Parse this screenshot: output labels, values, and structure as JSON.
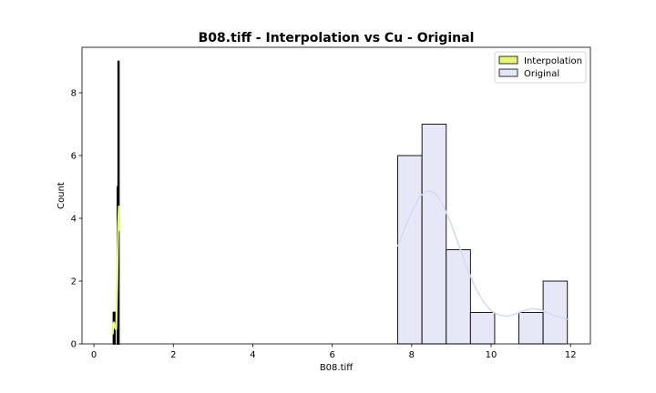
{
  "chart_data": {
    "type": "bar",
    "title": "B08.tiff - Interpolation vs Cu - Original",
    "xlabel": "B08.tiff",
    "ylabel": "Count",
    "xlim": [
      -0.3,
      12.5
    ],
    "ylim": [
      0,
      9.45
    ],
    "xticks": [
      0,
      2,
      4,
      6,
      8,
      10,
      12
    ],
    "yticks": [
      0,
      2,
      4,
      6,
      8
    ],
    "legend_position": "top-right",
    "series": [
      {
        "name": "Interpolation",
        "color": "#e5f57e",
        "edge_color": "#000000",
        "bins": [
          {
            "x0": 0.49,
            "x1": 0.51,
            "count": 1
          },
          {
            "x0": 0.51,
            "x1": 0.53,
            "count": 1
          },
          {
            "x0": 0.53,
            "x1": 0.55,
            "count": 0
          },
          {
            "x0": 0.55,
            "x1": 0.57,
            "count": 0
          },
          {
            "x0": 0.57,
            "x1": 0.59,
            "count": 0
          },
          {
            "x0": 0.59,
            "x1": 0.61,
            "count": 5
          },
          {
            "x0": 0.61,
            "x1": 0.63,
            "count": 9
          }
        ],
        "kde": [
          [
            0.47,
            0.3
          ],
          [
            0.5,
            0.7
          ],
          [
            0.53,
            0.55
          ],
          [
            0.56,
            0.45
          ],
          [
            0.59,
            2.2
          ],
          [
            0.61,
            3.8
          ],
          [
            0.63,
            4.4
          ],
          [
            0.65,
            3.6
          ]
        ]
      },
      {
        "name": "Original",
        "color": "#e6e8f8",
        "edge_color": "#000000",
        "bins": [
          {
            "x0": 7.65,
            "x1": 8.26,
            "count": 6
          },
          {
            "x0": 8.26,
            "x1": 8.87,
            "count": 7
          },
          {
            "x0": 8.87,
            "x1": 9.48,
            "count": 3
          },
          {
            "x0": 9.48,
            "x1": 10.09,
            "count": 1
          },
          {
            "x0": 10.09,
            "x1": 10.7,
            "count": 0
          },
          {
            "x0": 10.7,
            "x1": 11.31,
            "count": 1
          },
          {
            "x0": 11.31,
            "x1": 11.92,
            "count": 2
          }
        ],
        "kde": [
          [
            7.65,
            3.1
          ],
          [
            7.8,
            3.6
          ],
          [
            8.0,
            4.2
          ],
          [
            8.2,
            4.7
          ],
          [
            8.4,
            4.88
          ],
          [
            8.6,
            4.8
          ],
          [
            8.8,
            4.4
          ],
          [
            9.0,
            3.8
          ],
          [
            9.2,
            3.1
          ],
          [
            9.4,
            2.4
          ],
          [
            9.6,
            1.8
          ],
          [
            9.8,
            1.35
          ],
          [
            10.0,
            1.05
          ],
          [
            10.2,
            0.92
          ],
          [
            10.4,
            0.88
          ],
          [
            10.6,
            0.95
          ],
          [
            10.8,
            1.05
          ],
          [
            11.0,
            1.12
          ],
          [
            11.2,
            1.1
          ],
          [
            11.4,
            1.0
          ],
          [
            11.6,
            0.9
          ],
          [
            11.8,
            0.82
          ],
          [
            11.92,
            0.78
          ]
        ]
      }
    ]
  }
}
